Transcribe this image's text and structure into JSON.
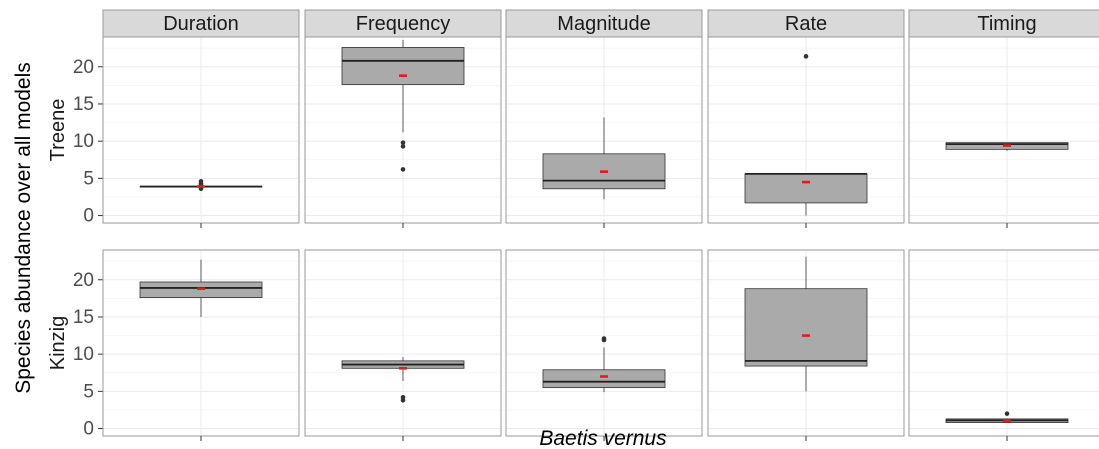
{
  "chart_data": {
    "type": "box",
    "xlabel": "Baetis vernus",
    "ylabel": "Species abundance over all models",
    "facet_columns": [
      "Duration",
      "Frequency",
      "Magnitude",
      "Rate",
      "Timing"
    ],
    "facet_rows": [
      {
        "name": "Treene",
        "ylim": [
          -1,
          24
        ],
        "yticks": [
          0,
          5,
          10,
          15,
          20
        ],
        "panels": [
          {
            "column": "Duration",
            "whisker_low": 3.9,
            "q1": 3.9,
            "median": 3.9,
            "q3": 3.9,
            "whisker_high": 3.9,
            "mean": 3.9,
            "outliers": [
              3.6,
              3.8,
              4.1,
              4.3,
              4.6
            ]
          },
          {
            "column": "Frequency",
            "whisker_low": 11.2,
            "q1": 17.6,
            "median": 20.8,
            "q3": 22.6,
            "whisker_high": 23.6,
            "mean": 18.8,
            "outliers": [
              9.3,
              9.8,
              6.2
            ]
          },
          {
            "column": "Magnitude",
            "whisker_low": 2.2,
            "q1": 3.6,
            "median": 4.7,
            "q3": 8.3,
            "whisker_high": 13.2,
            "mean": 5.9,
            "outliers": []
          },
          {
            "column": "Rate",
            "whisker_low": 0.0,
            "q1": 1.7,
            "median": 5.6,
            "q3": 5.6,
            "whisker_high": 5.6,
            "mean": 4.5,
            "outliers": [
              21.4
            ]
          },
          {
            "column": "Timing",
            "whisker_low": 8.7,
            "q1": 8.9,
            "median": 9.6,
            "q3": 9.8,
            "whisker_high": 9.8,
            "mean": 9.4,
            "outliers": []
          }
        ]
      },
      {
        "name": "Kinzig",
        "ylim": [
          -1,
          24
        ],
        "yticks": [
          0,
          5,
          10,
          15,
          20
        ],
        "panels": [
          {
            "column": "Duration",
            "whisker_low": 15.0,
            "q1": 17.6,
            "median": 18.9,
            "q3": 19.7,
            "whisker_high": 22.7,
            "mean": 18.8,
            "outliers": []
          },
          {
            "column": "Frequency",
            "whisker_low": 6.4,
            "q1": 8.1,
            "median": 8.6,
            "q3": 9.1,
            "whisker_high": 9.6,
            "mean": 8.1,
            "outliers": [
              4.2,
              3.8
            ]
          },
          {
            "column": "Magnitude",
            "whisker_low": 4.9,
            "q1": 5.5,
            "median": 6.3,
            "q3": 7.9,
            "whisker_high": 10.9,
            "mean": 7.0,
            "outliers": [
              11.9,
              12.1
            ]
          },
          {
            "column": "Rate",
            "whisker_low": 5.0,
            "q1": 8.4,
            "median": 9.1,
            "q3": 18.8,
            "whisker_high": 23.1,
            "mean": 12.5,
            "outliers": []
          },
          {
            "column": "Timing",
            "whisker_low": 0.8,
            "q1": 0.8,
            "median": 1.1,
            "q3": 1.3,
            "whisker_high": 1.3,
            "mean": 1.0,
            "outliers": [
              2.0
            ]
          }
        ]
      }
    ],
    "grid": true,
    "colors": {
      "box_fill": "#aaaaaa",
      "box_line": "#333333",
      "mean_marker": "#e41a1c",
      "strip_fill": "#d9d9d9",
      "panel_border": "#999999",
      "grid_major": "#ebebeb"
    }
  }
}
